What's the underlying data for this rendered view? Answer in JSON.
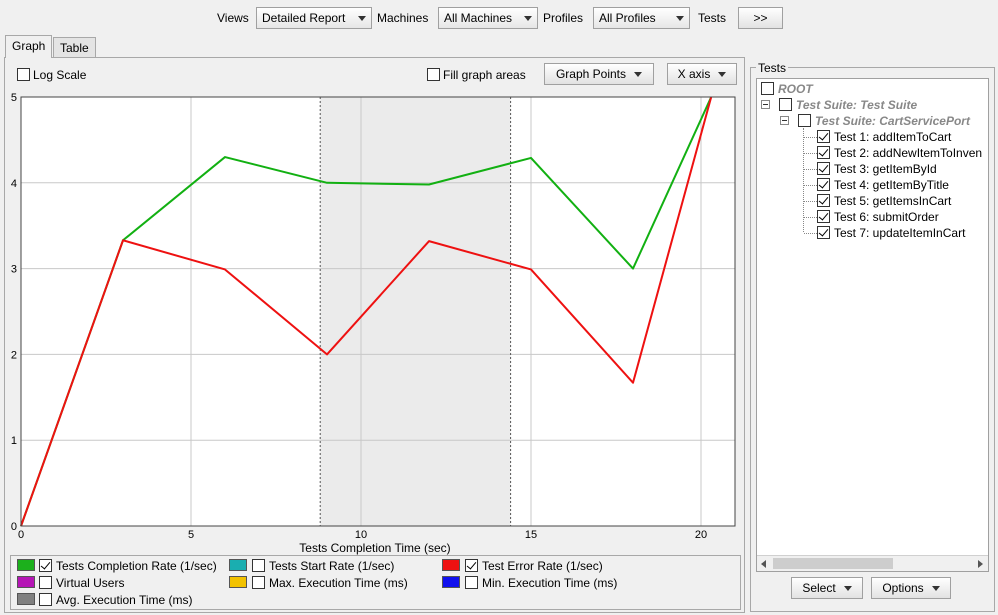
{
  "toolbar": {
    "views_label": "Views",
    "views_value": "Detailed Report",
    "machines_label": "Machines",
    "machines_value": "All Machines",
    "profiles_label": "Profiles",
    "profiles_value": "All Profiles",
    "tests_label": "Tests",
    "tests_button": ">>"
  },
  "tabs": [
    {
      "label": "Graph",
      "active": true
    },
    {
      "label": "Table",
      "active": false
    }
  ],
  "graph_controls": {
    "log_scale": "Log Scale",
    "fill_areas": "Fill graph areas",
    "graph_points": "Graph Points",
    "x_axis": "X axis"
  },
  "chart_data": {
    "type": "line",
    "xlabel": "Tests Completion Time (sec)",
    "ylabel": "",
    "xlim": [
      0,
      21
    ],
    "ylim": [
      0,
      5
    ],
    "x_ticks": [
      0,
      5,
      10,
      15,
      20
    ],
    "y_ticks": [
      0,
      1,
      2,
      3,
      4,
      5
    ],
    "grid": true,
    "highlight_range": [
      8.8,
      14.4
    ],
    "series": [
      {
        "name": "Tests Completion Rate (1/sec)",
        "color": "#12b012",
        "points": [
          [
            0,
            0
          ],
          [
            3,
            3.33
          ],
          [
            6,
            4.3
          ],
          [
            9,
            4.0
          ],
          [
            12,
            3.98
          ],
          [
            15,
            4.29
          ],
          [
            18,
            3.0
          ],
          [
            20.3,
            5.0
          ]
        ]
      },
      {
        "name": "Test Error Rate (1/sec)",
        "color": "#ee1111",
        "points": [
          [
            0,
            0
          ],
          [
            3,
            3.33
          ],
          [
            6,
            2.99
          ],
          [
            9,
            2.0
          ],
          [
            12,
            3.32
          ],
          [
            15,
            2.99
          ],
          [
            18,
            1.67
          ],
          [
            20.3,
            5.0
          ]
        ]
      }
    ]
  },
  "legend": [
    {
      "label": "Tests Completion Rate (1/sec)",
      "color": "#1cb01c",
      "checked": true
    },
    {
      "label": "Tests Start Rate (1/sec)",
      "color": "#1aaeb0",
      "checked": false
    },
    {
      "label": "Test Error Rate (1/sec)",
      "color": "#ee1111",
      "checked": true
    },
    {
      "label": "Virtual Users",
      "color": "#b515b5",
      "checked": false
    },
    {
      "label": "Max. Execution Time (ms)",
      "color": "#f2c200",
      "checked": false
    },
    {
      "label": "Min. Execution Time (ms)",
      "color": "#1111ee",
      "checked": false
    },
    {
      "label": "Avg. Execution Time (ms)",
      "color": "#808080",
      "checked": false
    }
  ],
  "tests_panel": {
    "title": "Tests",
    "root": "ROOT",
    "suite": "Test Suite: Test Suite",
    "port": "Test Suite: CartServicePort",
    "tests": [
      "Test 1: addItemToCart",
      "Test 2: addNewItemToInven",
      "Test 3: getItemById",
      "Test 4: getItemByTitle",
      "Test 5: getItemsInCart",
      "Test 6: submitOrder",
      "Test 7: updateItemInCart"
    ],
    "select_button": "Select",
    "options_button": "Options"
  }
}
